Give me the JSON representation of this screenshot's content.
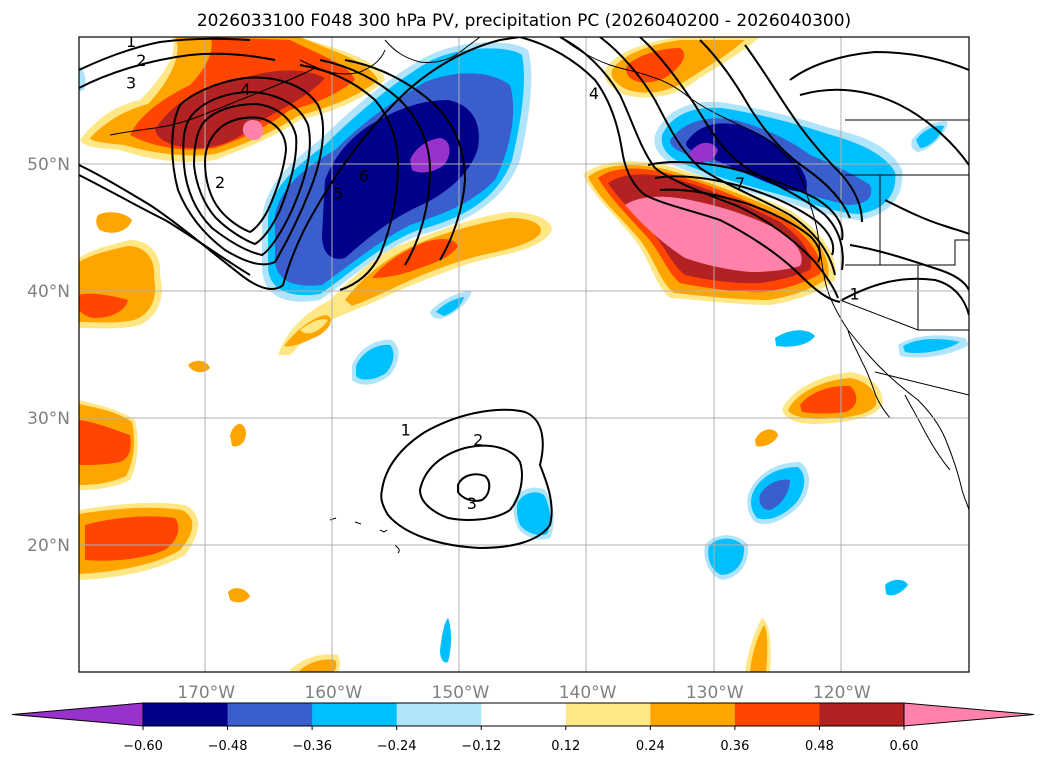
{
  "chart_data": {
    "type": "heatmap",
    "title": "2026033100 F048 300 hPa PV, precipitation PC (2026040200 - 2026040300)",
    "map": {
      "lon_range": [
        180,
        110
      ],
      "lat_range": [
        10,
        60
      ],
      "lon_ticks": [
        "170°W",
        "160°W",
        "150°W",
        "140°W",
        "130°W",
        "120°W"
      ],
      "lon_tick_values": [
        170,
        160,
        150,
        140,
        130,
        120
      ],
      "lat_ticks": [
        "50°N",
        "40°N",
        "30°N",
        "20°N"
      ],
      "lat_tick_values": [
        50,
        40,
        30,
        20
      ],
      "grid": true
    },
    "colorbar": {
      "ticks": [
        "−0.60",
        "−0.48",
        "−0.36",
        "−0.24",
        "−0.12",
        "0.12",
        "0.24",
        "0.36",
        "0.48",
        "0.60"
      ],
      "levels": [
        -0.6,
        -0.48,
        -0.36,
        -0.24,
        -0.12,
        0.12,
        0.24,
        0.36,
        0.48,
        0.6
      ],
      "colors": [
        "#9932cc",
        "#00008b",
        "#3a5fcd",
        "#00bfff",
        "#afe4fa",
        "#ffffff",
        "#ffe785",
        "#ffa500",
        "#ff4500",
        "#b22222",
        "#ff82ab"
      ],
      "extend": "both"
    },
    "pv_contour_labels": [
      {
        "text": "1",
        "lon": 175.9,
        "lat": 59.7
      },
      {
        "text": "2",
        "lon": 175.1,
        "lat": 58.2
      },
      {
        "text": "3",
        "lon": 175.9,
        "lat": 56.4
      },
      {
        "text": "4",
        "lon": 166.9,
        "lat": 55.9
      },
      {
        "text": "2",
        "lon": 168.9,
        "lat": 48.6
      },
      {
        "text": "5",
        "lon": 159.6,
        "lat": 47.7
      },
      {
        "text": "6",
        "lon": 157.6,
        "lat": 49.1
      },
      {
        "text": "4",
        "lon": 139.5,
        "lat": 55.6
      },
      {
        "text": "7",
        "lon": 128.0,
        "lat": 48.5
      },
      {
        "text": "1",
        "lon": 119.0,
        "lat": 39.8
      },
      {
        "text": "1",
        "lon": 154.3,
        "lat": 29.1
      },
      {
        "text": "2",
        "lon": 148.6,
        "lat": 28.3
      },
      {
        "text": "3",
        "lon": 149.1,
        "lat": 23.3
      }
    ]
  }
}
